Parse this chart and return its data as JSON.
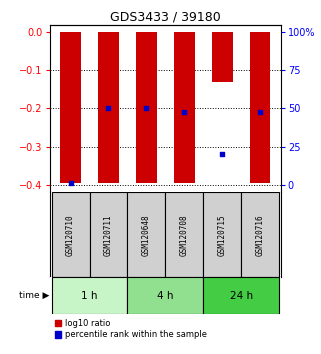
{
  "title": "GDS3433 / 39180",
  "samples": [
    "GSM120710",
    "GSM120711",
    "GSM120648",
    "GSM120708",
    "GSM120715",
    "GSM120716"
  ],
  "log10_ratio": [
    -0.395,
    -0.395,
    -0.395,
    -0.395,
    -0.13,
    -0.395
  ],
  "log10_top": [
    0.0,
    0.0,
    0.0,
    0.0,
    0.0,
    0.0
  ],
  "percentile_rank": [
    1.0,
    50.0,
    50.0,
    48.0,
    20.0,
    48.0
  ],
  "time_groups": [
    {
      "label": "1 h",
      "start": 0,
      "end": 2,
      "color": "#c8f5c8"
    },
    {
      "label": "4 h",
      "start": 2,
      "end": 4,
      "color": "#90e090"
    },
    {
      "label": "24 h",
      "start": 4,
      "end": 6,
      "color": "#44cc44"
    }
  ],
  "ylim_left": [
    -0.42,
    0.02
  ],
  "ylim_right": [
    -2.1,
    107
  ],
  "yticks_left": [
    0,
    -0.1,
    -0.2,
    -0.3,
    -0.4
  ],
  "yticks_right": [
    0,
    25,
    50,
    75,
    100
  ],
  "bar_color": "#cc0000",
  "dot_color": "#0000cc",
  "bg_color": "#ffffff",
  "sample_box_color": "#d0d0d0",
  "legend_items": [
    "log10 ratio",
    "percentile rank within the sample"
  ]
}
